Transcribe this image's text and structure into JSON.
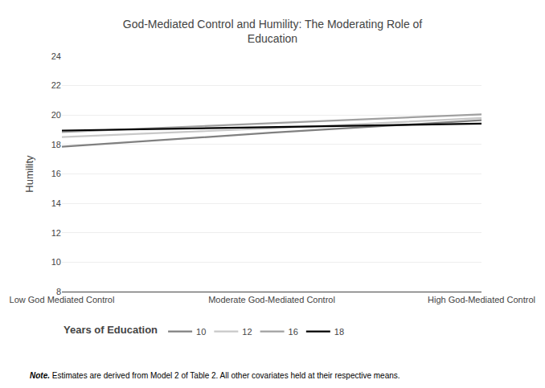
{
  "chart_data": {
    "type": "line",
    "title": "God-Mediated Control and Humility: The Moderating Role of\nEducation",
    "categories": [
      "Low God Mediated Control",
      "Moderate God-Mediated Control",
      "High God-Mediated Control"
    ],
    "ylabel": "Humility",
    "ylim": [
      8,
      24
    ],
    "yticks": [
      8,
      10,
      12,
      14,
      16,
      18,
      20,
      22,
      24
    ],
    "series": [
      {
        "name": "10",
        "color": "#808080",
        "values": [
          17.85,
          18.8,
          19.65
        ]
      },
      {
        "name": "12",
        "color": "#c8c8c8",
        "values": [
          18.5,
          19.1,
          19.8
        ]
      },
      {
        "name": "16",
        "color": "#a0a0a0",
        "values": [
          18.85,
          19.45,
          20.05
        ]
      },
      {
        "name": "18",
        "color": "#000000",
        "values": [
          18.95,
          19.2,
          19.42
        ]
      }
    ],
    "legend_title": "Years of Education",
    "legend": "bottom",
    "annotations": [
      "Note. Estimates are derived from Model 2 of Table 2. All other covariates held at their respective means."
    ],
    "grid": true
  }
}
